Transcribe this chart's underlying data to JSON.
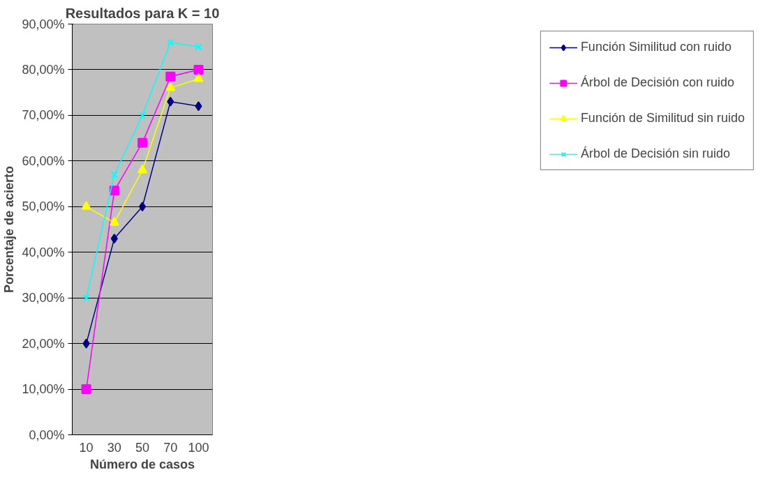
{
  "chart_data": {
    "type": "line",
    "title": "Resultados para K = 10",
    "xlabel": "Número de casos",
    "ylabel": "Porcentaje de acierto",
    "categories": [
      "10",
      "30",
      "50",
      "70",
      "100"
    ],
    "series": [
      {
        "name": "Función Similitud con ruido",
        "color": "#000080",
        "marker": "diamond",
        "values": [
          20,
          43,
          50,
          73,
          72
        ]
      },
      {
        "name": "Árbol de Decisión con ruido",
        "color": "#ff00ff",
        "marker": "square",
        "values": [
          10,
          53.5,
          64,
          78.5,
          80
        ]
      },
      {
        "name": "Función de Similitud sin ruido",
        "color": "#ffff00",
        "marker": "triangle",
        "values": [
          50,
          46.5,
          58,
          76,
          78
        ]
      },
      {
        "name": "Árbol de Decisión sin ruido",
        "color": "#00ffff",
        "marker": "cross",
        "values": [
          30,
          57,
          70,
          86,
          85
        ]
      }
    ],
    "ylim": [
      0,
      90
    ],
    "yticks": [
      {
        "value": 0,
        "label": "0,00%"
      },
      {
        "value": 10,
        "label": "10,00%"
      },
      {
        "value": 20,
        "label": "20,00%"
      },
      {
        "value": 30,
        "label": "30,00%"
      },
      {
        "value": 40,
        "label": "40,00%"
      },
      {
        "value": 50,
        "label": "50,00%"
      },
      {
        "value": 60,
        "label": "60,00%"
      },
      {
        "value": 70,
        "label": "70,00%"
      },
      {
        "value": 80,
        "label": "80,00%"
      },
      {
        "value": 90,
        "label": "90,00%"
      }
    ],
    "grid": "y",
    "legend": "right"
  }
}
